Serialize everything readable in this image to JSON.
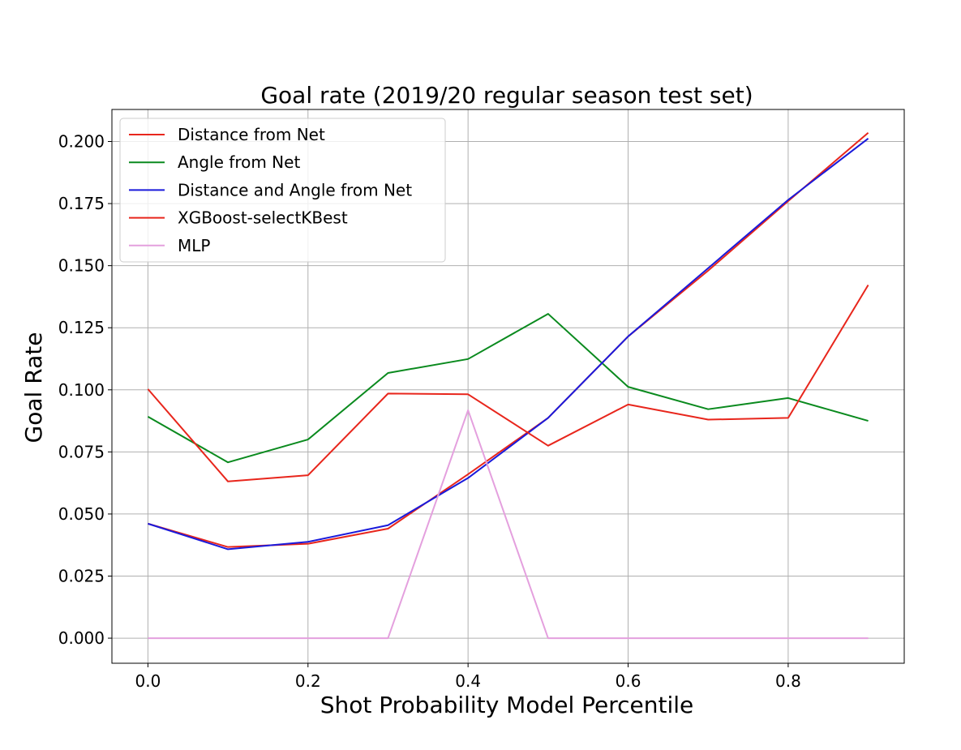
{
  "chart_data": {
    "type": "line",
    "title": "Goal rate (2019/20 regular season test set)",
    "xlabel": "Shot Probability Model Percentile",
    "ylabel": "Goal Rate",
    "xlim": [
      -0.045,
      0.945
    ],
    "ylim": [
      -0.0101,
      0.2129
    ],
    "grid": true,
    "legend_position": "top-left",
    "x": [
      0.0,
      0.1,
      0.2,
      0.3,
      0.4,
      0.5,
      0.6,
      0.7,
      0.8,
      0.9
    ],
    "xticks": [
      {
        "value": 0.0,
        "label": "0.0"
      },
      {
        "value": 0.2,
        "label": "0.2"
      },
      {
        "value": 0.4,
        "label": "0.4"
      },
      {
        "value": 0.6,
        "label": "0.6"
      },
      {
        "value": 0.8,
        "label": "0.8"
      }
    ],
    "yticks": [
      {
        "value": 0.0,
        "label": "0.000"
      },
      {
        "value": 0.025,
        "label": "0.025"
      },
      {
        "value": 0.05,
        "label": "0.050"
      },
      {
        "value": 0.075,
        "label": "0.075"
      },
      {
        "value": 0.1,
        "label": "0.100"
      },
      {
        "value": 0.125,
        "label": "0.125"
      },
      {
        "value": 0.15,
        "label": "0.150"
      },
      {
        "value": 0.175,
        "label": "0.175"
      },
      {
        "value": 0.2,
        "label": "0.200"
      }
    ],
    "series": [
      {
        "name": "Distance from Net",
        "color": "#e8261c",
        "values": [
          0.0461,
          0.0367,
          0.038,
          0.0441,
          0.066,
          0.0887,
          0.1215,
          0.148,
          0.176,
          0.2035
        ]
      },
      {
        "name": "Angle from Net",
        "color": "#0a8a1e",
        "values": [
          0.0892,
          0.0708,
          0.08,
          0.1068,
          0.1124,
          0.1306,
          0.1012,
          0.0922,
          0.0967,
          0.0875
        ]
      },
      {
        "name": "Distance and Angle from Net",
        "color": "#1a1adb",
        "values": [
          0.0461,
          0.0358,
          0.0388,
          0.0455,
          0.0645,
          0.0887,
          0.1215,
          0.149,
          0.1765,
          0.2012
        ]
      },
      {
        "name": "XGBoost-selectKBest",
        "color": "#e8261c",
        "values": [
          0.1003,
          0.0631,
          0.0656,
          0.0985,
          0.0982,
          0.0775,
          0.0941,
          0.088,
          0.0887,
          0.1422
        ]
      },
      {
        "name": "MLP",
        "color": "#e4a0de",
        "values": [
          0.0,
          0.0,
          0.0,
          0.0,
          0.0918,
          0.0,
          0.0,
          0.0,
          0.0,
          0.0
        ]
      }
    ]
  }
}
